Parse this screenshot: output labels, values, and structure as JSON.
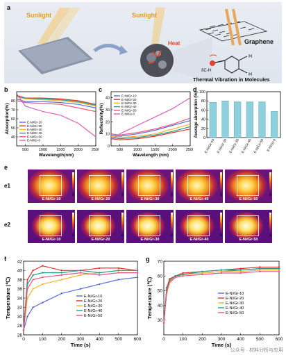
{
  "panel_a": {
    "label": "a",
    "sunlight_left": "Sunlight",
    "sunlight_mid": "Sunlight",
    "heat": "Heat",
    "graphene": "Graphene",
    "caption": "Thermal Vibration in Molecules",
    "bond_label": "δC-H",
    "atom_h": "H"
  },
  "panels": {
    "b": "b",
    "c": "c",
    "d": "d",
    "e": "e",
    "e1": "e1",
    "e2": "e2",
    "f": "f",
    "g": "g"
  },
  "samples": [
    "E-Ni/Gr-10",
    "E-Ni/Gr-20",
    "E-Ni/Gr-30",
    "E-Ni/Gr-40",
    "E-Ni/Gr-50",
    "E-Ni/Gr-0"
  ],
  "thermal_row1": [
    "E-Ni/Gr-10",
    "E-Ni/Gr-20",
    "E-Ni/Gr-30",
    "E-Ni/Gr-40",
    "E-Ni/Gr-50"
  ],
  "thermal_row2": [
    "E-Ni/Gr-10",
    "E-Ni/Gr-20",
    "E-Ni/Gr-30",
    "E-Ni/Gr-40",
    "E-Ni/Gr-50"
  ],
  "colors": {
    "gr10": "#5b6bd6",
    "gr20": "#e5322d",
    "gr30": "#f2b632",
    "gr40": "#1e9e8a",
    "gr50": "#e2557e",
    "gr0": "#d95fc0",
    "bar": "#8fd0dd"
  },
  "watermark": "公众号 · 材料分析与应用",
  "chart_data": [
    {
      "id": "b",
      "type": "line",
      "xlabel": "Wavelength(nm)",
      "ylabel": "Absorption(%)",
      "xlim": [
        250,
        2500
      ],
      "ylim": [
        30,
        90
      ],
      "xticks": [
        500,
        1000,
        1500,
        2000,
        2500
      ],
      "yticks": [
        40,
        50,
        60,
        70,
        80
      ],
      "legend": "left",
      "series": [
        {
          "name": "E-Ni/Gr-10",
          "x": [
            250,
            500,
            1000,
            1500,
            2000,
            2500
          ],
          "y": [
            82,
            79,
            79,
            78,
            76,
            72
          ]
        },
        {
          "name": "E-Ni/Gr-20",
          "x": [
            250,
            500,
            1000,
            1500,
            2000,
            2500
          ],
          "y": [
            86,
            83,
            83,
            82,
            80,
            76
          ]
        },
        {
          "name": "E-Ni/Gr-30",
          "x": [
            250,
            500,
            1000,
            1500,
            2000,
            2500
          ],
          "y": [
            84,
            82,
            81,
            80,
            78,
            74
          ]
        },
        {
          "name": "E-Ni/Gr-40",
          "x": [
            250,
            500,
            1000,
            1500,
            2000,
            2500
          ],
          "y": [
            85,
            83,
            82,
            81,
            79,
            75
          ]
        },
        {
          "name": "E-Ni/Gr-50",
          "x": [
            250,
            500,
            1000,
            1500,
            2000,
            2500
          ],
          "y": [
            80,
            78,
            77,
            76,
            72,
            68
          ]
        },
        {
          "name": "E-Ni/Gr-0",
          "x": [
            250,
            500,
            1000,
            1500,
            2000,
            2500
          ],
          "y": [
            88,
            74,
            68,
            64,
            55,
            40
          ]
        }
      ]
    },
    {
      "id": "c",
      "type": "line",
      "xlabel": "Wavelength (nm)",
      "ylabel": "Reflectivity(%)",
      "xlim": [
        250,
        2500
      ],
      "ylim": [
        0,
        45
      ],
      "xticks": [
        500,
        1000,
        1500,
        2000,
        2500
      ],
      "yticks": [
        0,
        10,
        20,
        30,
        40
      ],
      "legend": "top-left",
      "series": [
        {
          "name": "E-Ni/Gr-10",
          "x": [
            250,
            500,
            1000,
            1500,
            2000,
            2500
          ],
          "y": [
            9,
            8,
            10,
            13,
            17,
            21
          ]
        },
        {
          "name": "E-Ni/Gr-20",
          "x": [
            250,
            500,
            1000,
            1500,
            2000,
            2500
          ],
          "y": [
            6,
            5,
            6,
            8,
            11,
            14
          ]
        },
        {
          "name": "E-Ni/Gr-30",
          "x": [
            250,
            500,
            1000,
            1500,
            2000,
            2500
          ],
          "y": [
            8,
            7,
            8,
            10,
            14,
            18
          ]
        },
        {
          "name": "E-Ni/Gr-40",
          "x": [
            250,
            500,
            1000,
            1500,
            2000,
            2500
          ],
          "y": [
            7,
            6,
            7,
            9,
            12,
            16
          ]
        },
        {
          "name": "E-Ni/Gr-50",
          "x": [
            250,
            500,
            1000,
            1500,
            2000,
            2500
          ],
          "y": [
            10,
            9,
            11,
            14,
            18,
            23
          ]
        },
        {
          "name": "E-Ni/Gr-0",
          "x": [
            250,
            500,
            1000,
            1500,
            2000,
            2500
          ],
          "y": [
            5,
            10,
            17,
            24,
            31,
            40
          ]
        }
      ]
    },
    {
      "id": "d",
      "type": "bar",
      "ylabel": "Average absorption (%)",
      "ylim": [
        0,
        100
      ],
      "yticks": [
        0,
        20,
        40,
        60,
        80,
        100
      ],
      "categories": [
        "E-Ni/Gr-10",
        "E-Ni/Gr-20",
        "E-Ni/Gr-30",
        "E-Ni/Gr-40",
        "E-Ni/Gr-50",
        "E-Ni/Gr-0"
      ],
      "values": [
        77,
        80,
        78,
        78,
        78,
        57
      ]
    },
    {
      "id": "f",
      "type": "line",
      "xlabel": "Time (s)",
      "ylabel": "Temperature (℃)",
      "xlim": [
        0,
        600
      ],
      "ylim": [
        26,
        42
      ],
      "xticks": [
        0,
        100,
        200,
        300,
        400,
        500,
        600
      ],
      "yticks": [
        26,
        28,
        30,
        32,
        34,
        36,
        38,
        40,
        42
      ],
      "legend": "center-right",
      "series": [
        {
          "name": "E-Ni/Gr-10",
          "x": [
            0,
            20,
            50,
            100,
            200,
            300,
            400,
            500,
            600
          ],
          "y": [
            27,
            30,
            32,
            33,
            35,
            36,
            37,
            38,
            38.5
          ]
        },
        {
          "name": "E-Ni/Gr-20",
          "x": [
            0,
            20,
            50,
            100,
            200,
            300,
            400,
            500,
            600
          ],
          "y": [
            27,
            38,
            40,
            41,
            40,
            40,
            40.5,
            40.5,
            40
          ]
        },
        {
          "name": "E-Ni/Gr-30",
          "x": [
            0,
            20,
            50,
            100,
            200,
            300,
            400,
            500,
            600
          ],
          "y": [
            27,
            34,
            36,
            37,
            38,
            39,
            39.5,
            40,
            40
          ]
        },
        {
          "name": "E-Ni/Gr-40",
          "x": [
            0,
            20,
            50,
            100,
            200,
            300,
            400,
            500,
            600
          ],
          "y": [
            27,
            37,
            39,
            39.5,
            39.5,
            40,
            39.5,
            40,
            40
          ]
        },
        {
          "name": "E-Ni/Gr-50",
          "x": [
            0,
            20,
            50,
            100,
            200,
            300,
            400,
            500,
            600
          ],
          "y": [
            27,
            36,
            38,
            38.5,
            39,
            39.5,
            39,
            39.5,
            39.5
          ]
        }
      ]
    },
    {
      "id": "g",
      "type": "line",
      "xlabel": "Time (s)",
      "ylabel": "Temperature (℃)",
      "xlim": [
        0,
        600
      ],
      "ylim": [
        20,
        70
      ],
      "xticks": [
        0,
        100,
        200,
        300,
        400,
        500,
        600
      ],
      "yticks": [
        30,
        40,
        50,
        60,
        70
      ],
      "legend": "center-right",
      "series": [
        {
          "name": "E-Ni/Gr-10",
          "x": [
            0,
            15,
            30,
            60,
            100,
            200,
            300,
            400,
            500,
            600
          ],
          "y": [
            28,
            50,
            57,
            60,
            61,
            62,
            63,
            64,
            65,
            65
          ]
        },
        {
          "name": "E-Ni/Gr-20",
          "x": [
            0,
            15,
            30,
            60,
            100,
            200,
            300,
            400,
            500,
            600
          ],
          "y": [
            28,
            52,
            58,
            60,
            62,
            63,
            64,
            65,
            66,
            66
          ]
        },
        {
          "name": "E-Ni/Gr-30",
          "x": [
            0,
            15,
            30,
            60,
            100,
            200,
            300,
            400,
            500,
            600
          ],
          "y": [
            28,
            48,
            55,
            59,
            61,
            62,
            63,
            63,
            64,
            64
          ]
        },
        {
          "name": "E-Ni/Gr-40",
          "x": [
            0,
            15,
            30,
            60,
            100,
            200,
            300,
            400,
            500,
            600
          ],
          "y": [
            28,
            51,
            57,
            60,
            61,
            63,
            64,
            64,
            65,
            65
          ]
        },
        {
          "name": "E-Ni/Gr-50",
          "x": [
            0,
            15,
            30,
            60,
            100,
            200,
            300,
            400,
            500,
            600
          ],
          "y": [
            28,
            49,
            56,
            59,
            60,
            61,
            62,
            62,
            63,
            63
          ]
        }
      ]
    }
  ]
}
